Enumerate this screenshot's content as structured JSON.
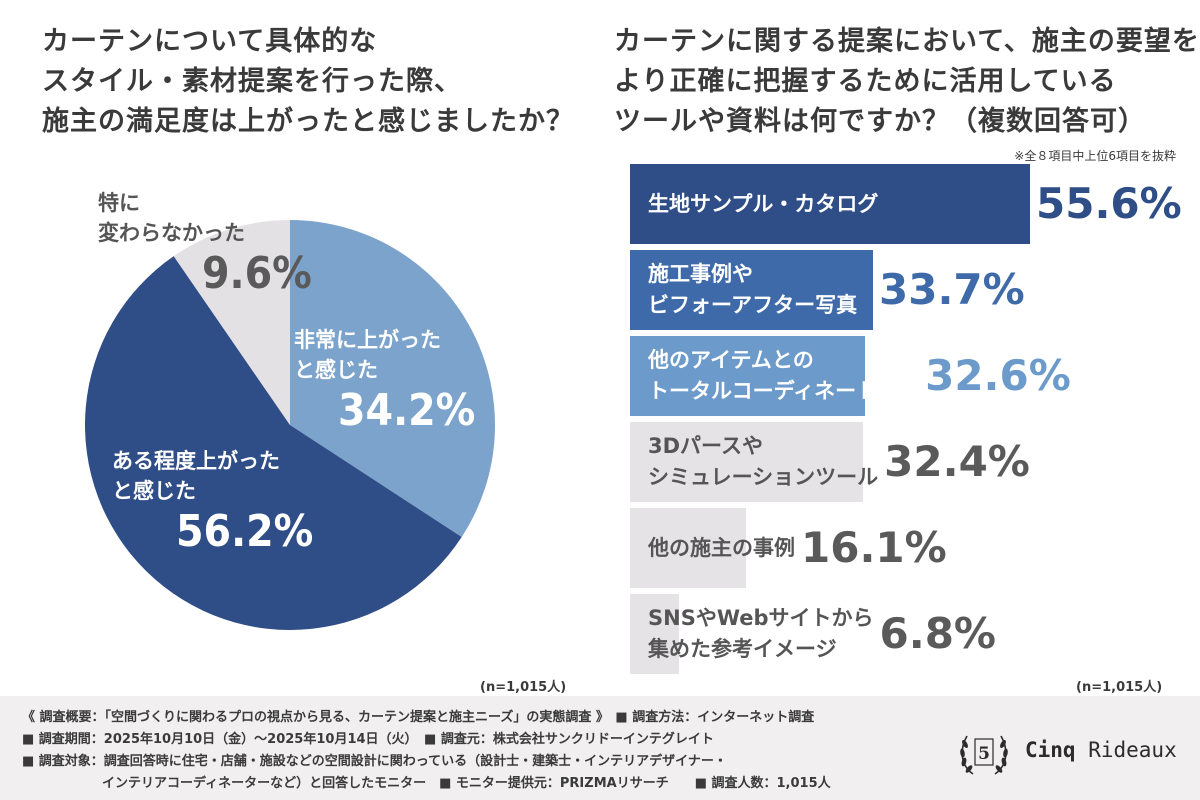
{
  "left_title": [
    "カーテンについて具体的な",
    "スタイル・素材提案を行った際、",
    "施主の満足度は上がったと感じましたか？"
  ],
  "right_title": [
    "カーテンに関する提案において、施主の要望を",
    "より正確に把握するために活用している",
    "ツールや資料は何ですか？（複数回答可）"
  ],
  "right_note": "※全８項目中上位6項目を抜粋",
  "chart_data": [
    {
      "type": "pie",
      "slices": [
        {
          "label": [
            "非常に上がった",
            "と感じた"
          ],
          "value": 34.2,
          "display": "34.2%",
          "color": "#7ba3cb"
        },
        {
          "label": [
            "ある程度上がった",
            "と感じた"
          ],
          "value": 56.2,
          "display": "56.2%",
          "color": "#2f4d87"
        },
        {
          "label": [
            "特に",
            "変わらなかった"
          ],
          "value": 9.6,
          "display": "9.6%",
          "color": "#e3e1e4"
        }
      ],
      "note": "(n=1,015人)"
    },
    {
      "type": "bar",
      "orientation": "horizontal",
      "categories": [
        [
          "生地サンプル・カタログ"
        ],
        [
          "施工事例や",
          "ビフォーアフター写真"
        ],
        [
          "他のアイテムとの",
          "トータルコーディネート事例"
        ],
        [
          "3Dパースや",
          "シミュレーションツール"
        ],
        [
          "他の施主の事例"
        ],
        [
          "SNSやWebサイトから",
          "集めた参考イメージ"
        ]
      ],
      "values": [
        55.6,
        33.7,
        32.6,
        32.4,
        16.1,
        6.8
      ],
      "display": [
        "55.6%",
        "33.7%",
        "32.6%",
        "32.4%",
        "16.1%",
        "6.8%"
      ],
      "colors": [
        "#2f4d87",
        "#3f6aaa",
        "#6b9acb",
        "#e6e3e7",
        "#e6e3e7",
        "#e6e3e7"
      ],
      "text_colors": [
        "#ffffff",
        "#ffffff",
        "#ffffff",
        "#555555",
        "#555555",
        "#555555"
      ],
      "value_colors": [
        "#2f4d87",
        "#3f6aaa",
        "#6b9acb",
        "#5a5a5a",
        "#5a5a5a",
        "#5a5a5a"
      ],
      "note": "(n=1,015人)"
    }
  ],
  "footer": {
    "line1": "《 調査概要：「空間づくりに関わるプロの視点から見る、カーテン提案と施主ニーズ」の実態調査 》　■ 調査方法：インターネット調査",
    "line2": "■ 調査期間：2025年10月10日（金）～2025年10月14日（火）　■ 調査元：株式会社サンクリドーインテグレイト",
    "line3": "■ 調査対象：調査回答時に住宅・店舗・施設などの空間設計に関わっている（設計士・建築士・インテリアデザイナー・",
    "line4": "インテリアコーディネーターなど）と回答したモニター　■ モニター提供元：PRIZMAリサーチ　　■ 調査人数：1,015人"
  },
  "logo": {
    "brand_bold": "Cinq",
    "brand_rest": " Rideaux",
    "seal_number": "5"
  }
}
